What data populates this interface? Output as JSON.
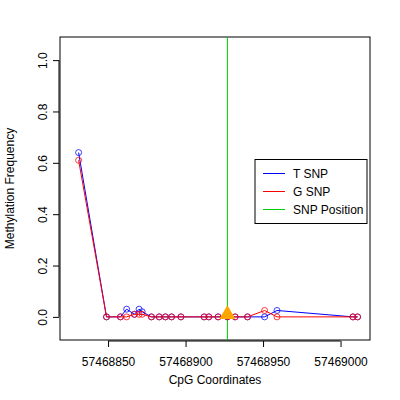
{
  "chart_data": {
    "type": "line",
    "marker": "circle",
    "x_label": "CpG Coordinates",
    "y_label": "Methylation Frequency",
    "x": [
      57468831,
      57468849,
      57468858,
      57468862,
      57468867,
      57468870,
      57468872,
      57468878,
      57468883,
      57468887,
      57468891,
      57468897,
      57468912,
      57468915,
      57468921,
      57468927,
      57468932,
      57468940,
      57468951,
      57468959,
      57469008,
      57469011
    ],
    "series": [
      {
        "name": "T SNP",
        "color": "#0000ff",
        "values": [
          0.64,
          0.0,
          0.0,
          0.03,
          0.01,
          0.03,
          0.02,
          0.0,
          0.0,
          0.0,
          0.0,
          0.0,
          0.0,
          0.0,
          0.0,
          0.0,
          0.0,
          0.0,
          0.0,
          0.025,
          0.0,
          0.0
        ]
      },
      {
        "name": "G SNP",
        "color": "#ff0000",
        "values": [
          0.61,
          0.0,
          0.0,
          0.0,
          0.01,
          0.01,
          0.01,
          0.0,
          0.0,
          0.0,
          0.0,
          0.0,
          0.0,
          0.0,
          0.0,
          0.0,
          0.0,
          0.0,
          0.025,
          0.0,
          0.0,
          0.0
        ]
      }
    ],
    "snp": {
      "name": "SNP Position",
      "color": "#00cc00",
      "x": 57468927,
      "y": 0.01
    },
    "xlim": [
      57468819,
      57469019
    ],
    "ylim": [
      -0.09,
      1.09
    ],
    "xticks": [
      57468850,
      57468900,
      57468950,
      57469000
    ],
    "yticks": [
      {
        "value": 0,
        "label": "0.0"
      },
      0.2,
      0.4,
      0.6,
      0.8,
      {
        "value": 1,
        "label": "1.0"
      }
    ],
    "legend": "right",
    "grid": false
  }
}
